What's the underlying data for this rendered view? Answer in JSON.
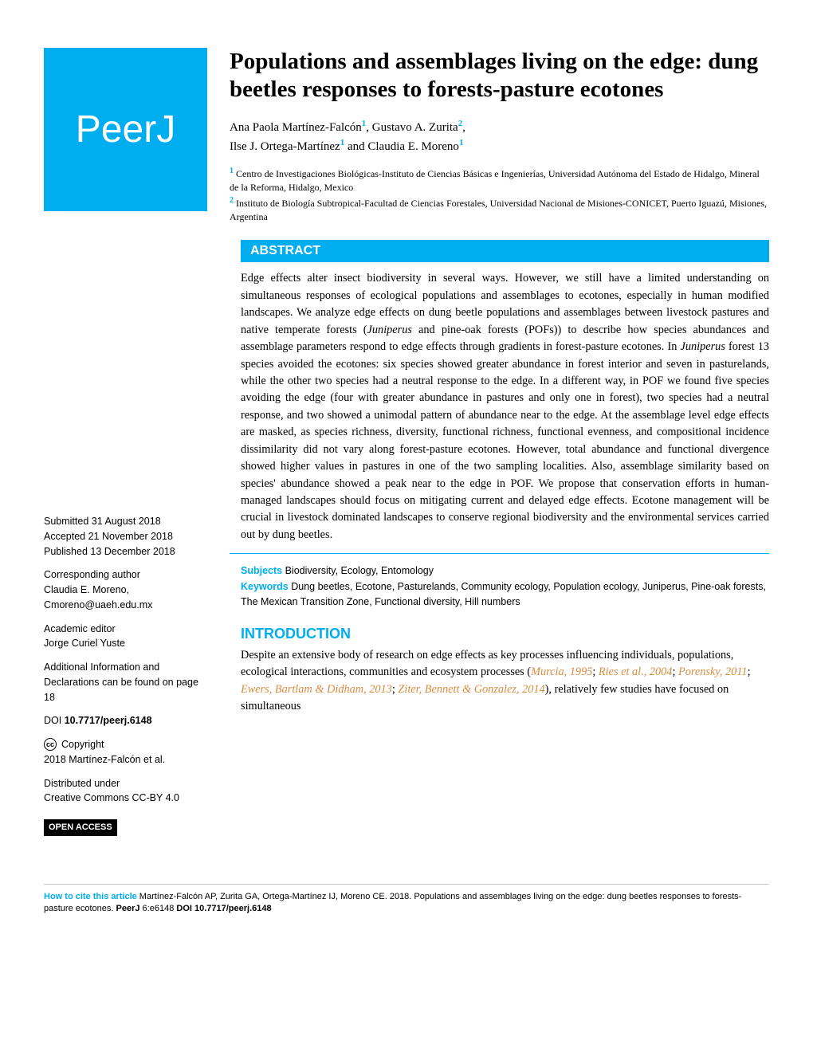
{
  "logo": {
    "text": "PeerJ"
  },
  "title": "Populations and assemblages living on the edge: dung beetles responses to forests-pasture ecotones",
  "authors": {
    "a1_name": "Ana Paola Martínez-Falcón",
    "a1_sup": "1",
    "a2_name": "Gustavo A. Zurita",
    "a2_sup": "2",
    "a3_name": "Ilse J. Ortega-Martínez",
    "a3_sup": "1",
    "a4_name": "Claudia E. Moreno",
    "a4_sup": "1",
    "sep_comma": ", ",
    "sep_and": " and "
  },
  "affiliations": {
    "n1": "1",
    "t1": " Centro de Investigaciones Biológicas-Instituto de Ciencias Básicas e Ingenierías, Universidad Autónoma del Estado de Hidalgo, Mineral de la Reforma, Hidalgo, Mexico",
    "n2": "2",
    "t2": " Instituto de Biología Subtropical-Facultad de Ciencias Forestales, Universidad Nacional de Misiones-CONICET, Puerto Iguazú, Misiones, Argentina"
  },
  "abstract": {
    "header": "ABSTRACT",
    "p1": "Edge effects alter insect biodiversity in several ways. However, we still have a limited understanding on simultaneous responses of ecological populations and assemblages to ecotones, especially in human modified landscapes. We analyze edge effects on dung beetle populations and assemblages between livestock pastures and native temperate forests (",
    "i1": "Juniperus",
    "p2": " and pine-oak forests (POFs)) to describe how species abundances and assemblage parameters respond to edge effects through gradients in forest-pasture ecotones. In ",
    "i2": "Juniperus",
    "p3": " forest 13 species avoided the ecotones: six species showed greater abundance in forest interior and seven in pasturelands, while the other two species had a neutral response to the edge. In a different way, in POF we found five species avoiding the edge (four with greater abundance in pastures and only one in forest), two species had a neutral response, and two showed a unimodal pattern of abundance near to the edge. At the assemblage level edge effects are masked, as species richness, diversity, functional richness, functional evenness, and compositional incidence dissimilarity did not vary along forest-pasture ecotones. However, total abundance and functional divergence showed higher values in pastures in one of the two sampling localities. Also, assemblage similarity based on species' abundance showed a peak near to the edge in POF. We propose that conservation efforts in human-managed landscapes should focus on mitigating current and delayed edge effects. Ecotone management will be crucial in livestock dominated landscapes to conserve regional biodiversity and the environmental services carried out by dung beetles."
  },
  "subjects": {
    "label": "Subjects",
    "text": "  Biodiversity, Ecology, Entomology"
  },
  "keywords": {
    "label": "Keywords",
    "text": "  Dung beetles, Ecotone, Pasturelands, Community ecology, Population ecology, Juniperus, Pine-oak forests, The Mexican Transition Zone, Functional diversity, Hill numbers"
  },
  "intro": {
    "heading": "INTRODUCTION",
    "p1": "Despite an extensive body of research on edge effects as key processes influencing individuals, populations, ecological interactions, communities and ecosystem processes (",
    "r1": "Murcia, 1995",
    "s1": "; ",
    "r2": "Ries et al., 2004",
    "s2": "; ",
    "r3": "Porensky, 2011",
    "s3": "; ",
    "r4": "Ewers, Bartlam & Didham, 2013",
    "s4": "; ",
    "r5": "Ziter, Bennett & Gonzalez, 2014",
    "p2": "), relatively few studies have focused on simultaneous"
  },
  "meta": {
    "submitted_label": "Submitted ",
    "submitted_date": "31 August 2018",
    "accepted_label": "Accepted ",
    "accepted_date": "21 November 2018",
    "published_label": "Published ",
    "published_date": "13 December 2018",
    "corr_label": "Corresponding author",
    "corr_name": "Claudia E. Moreno,",
    "corr_email": "Cmoreno@uaeh.edu.mx",
    "ae_label": "Academic editor",
    "ae_name": "Jorge Curiel Yuste",
    "addl_info": "Additional Information and Declarations can be found on page 18",
    "doi_label": "DOI ",
    "doi": "10.7717/peerj.6148",
    "copyright_label": "Copyright",
    "copyright_text": "2018 Martínez-Falcón et al.",
    "dist_label": "Distributed under",
    "dist_text": "Creative Commons CC-BY 4.0",
    "open_access": "OPEN ACCESS",
    "cc": "cc"
  },
  "citation": {
    "prefix": "How to cite this article",
    "text": " Martínez-Falcón AP, Zurita GA, Ortega-Martínez IJ, Moreno CE. 2018. Populations and assemblages living on the edge: dung beetles responses to forests-pasture ecotones. ",
    "journal": "PeerJ",
    "vol": " 6:e6148 ",
    "doi": "DOI 10.7717/peerj.6148"
  },
  "colors": {
    "brand": "#00aeef",
    "ref_link": "#d98c3f",
    "text": "#000000",
    "bg": "#ffffff"
  }
}
